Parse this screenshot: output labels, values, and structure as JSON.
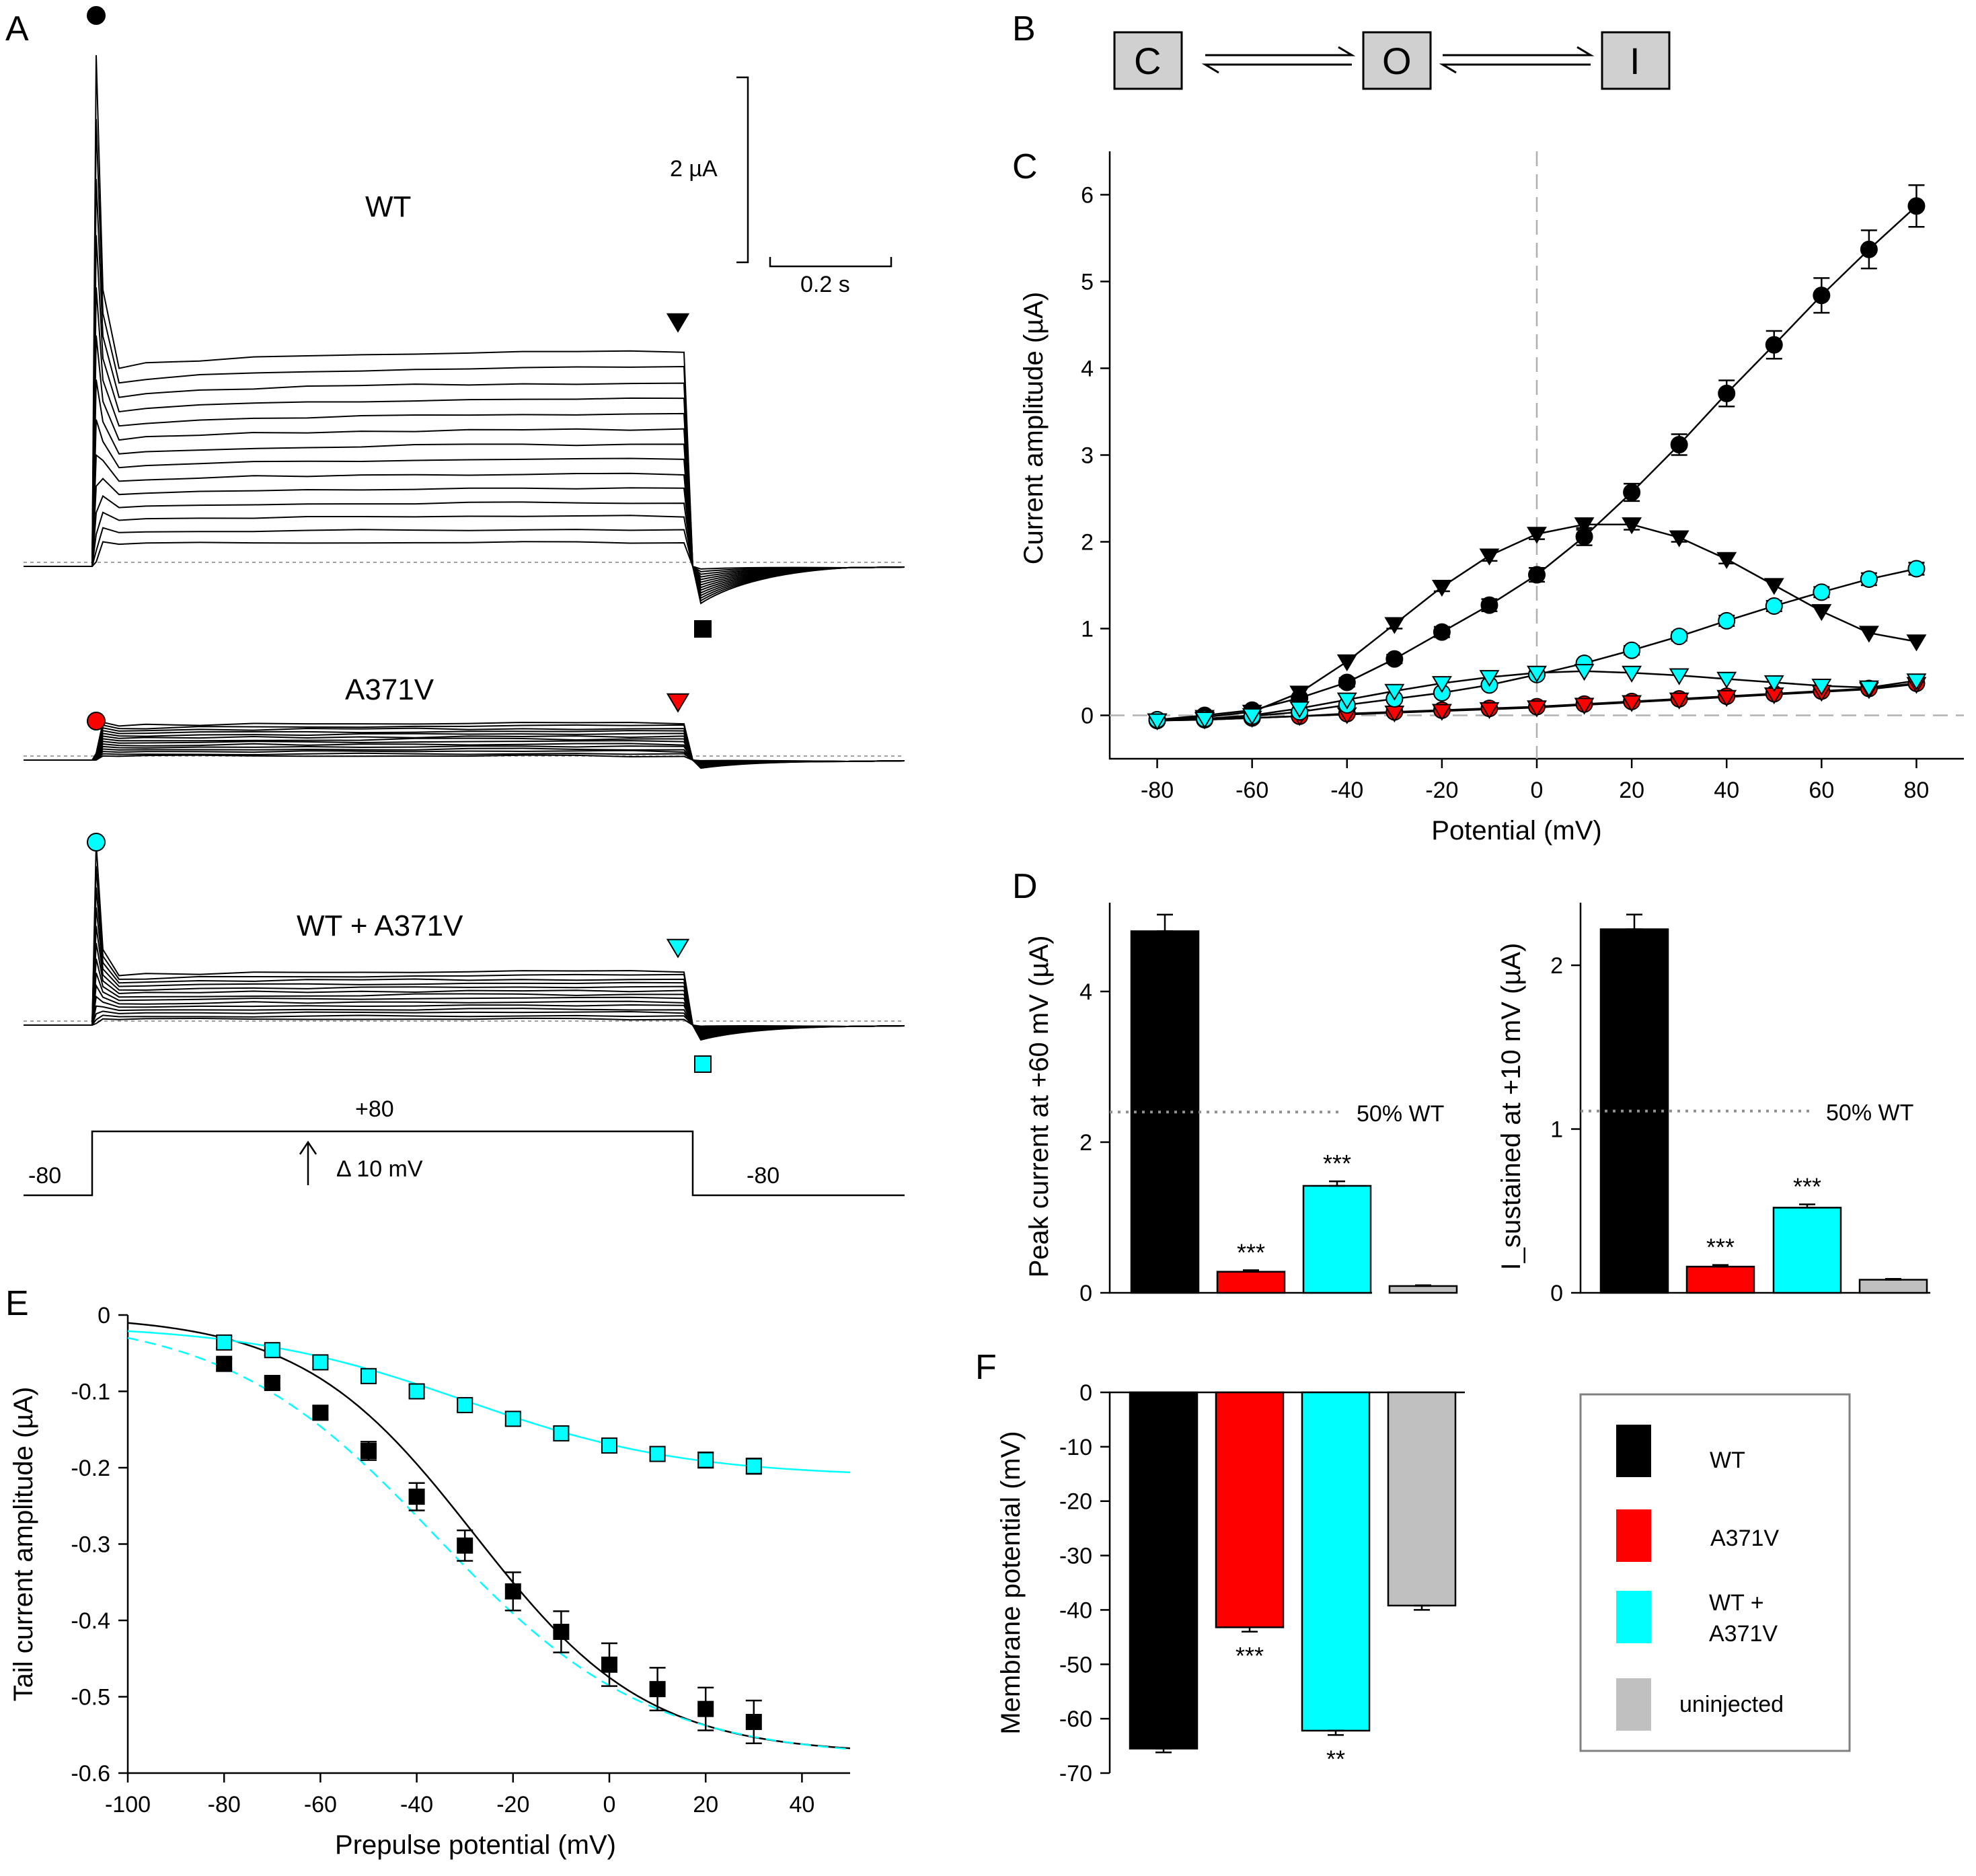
{
  "panels": {
    "A": "A",
    "B": "B",
    "C": "C",
    "D": "D",
    "E": "E",
    "F": "F"
  },
  "colors": {
    "WT": "#000000",
    "A371V": "#ff0000",
    "WT_A371V": "#00ffff",
    "uninjected": "#c0c0c0"
  },
  "panel_A": {
    "trace_labels": [
      "WT",
      "A371V",
      "WT + A371V"
    ],
    "scale_current": "2 µA",
    "scale_time": "0.2 s",
    "protocol": {
      "top": "+80",
      "step": "Δ 10 mV",
      "hold_left": "-80",
      "hold_right": "-80"
    }
  },
  "panel_B": {
    "states": [
      "C",
      "O",
      "I"
    ]
  },
  "chart_data": [
    {
      "panel": "C",
      "type": "line",
      "xlabel": "Potential (mV)",
      "ylabel": "Current amplitude (µA)",
      "xlim": [
        -90,
        90
      ],
      "ylim": [
        -0.5,
        6.5
      ],
      "xticks": [
        "-80",
        "-60",
        "-40",
        "-20",
        "0",
        "20",
        "40",
        "60",
        "80"
      ],
      "yticks": [
        "0",
        "1",
        "2",
        "3",
        "4",
        "5",
        "6"
      ],
      "x": [
        -80,
        -70,
        -60,
        -50,
        -40,
        -30,
        -20,
        -10,
        0,
        10,
        20,
        30,
        40,
        50,
        60,
        70,
        80
      ],
      "series": [
        {
          "group": "WT",
          "marker": "circle",
          "values": [
            -0.05,
            0.0,
            0.06,
            0.2,
            0.38,
            0.65,
            0.96,
            1.27,
            1.62,
            2.06,
            2.57,
            3.12,
            3.71,
            4.27,
            4.84,
            5.37,
            5.87
          ],
          "err": [
            0.03,
            0.03,
            0.03,
            0.04,
            0.05,
            0.05,
            0.06,
            0.07,
            0.08,
            0.1,
            0.1,
            0.12,
            0.15,
            0.16,
            0.2,
            0.22,
            0.24
          ]
        },
        {
          "group": "WT",
          "marker": "triangle",
          "values": [
            -0.06,
            -0.02,
            0.04,
            0.26,
            0.62,
            1.05,
            1.48,
            1.84,
            2.09,
            2.2,
            2.2,
            2.05,
            1.8,
            1.5,
            1.2,
            0.95,
            0.85
          ],
          "err": [
            0.02,
            0.02,
            0.02,
            0.03,
            0.04,
            0.05,
            0.05,
            0.06,
            0.06,
            0.06,
            0.06,
            0.05,
            0.05,
            0.04,
            0.04,
            0.03,
            0.03
          ]
        },
        {
          "group": "A371V",
          "marker": "circle",
          "values": [
            -0.06,
            -0.05,
            -0.03,
            -0.01,
            0.02,
            0.04,
            0.06,
            0.08,
            0.1,
            0.13,
            0.16,
            0.19,
            0.22,
            0.25,
            0.28,
            0.31,
            0.37
          ],
          "err": [
            0.01,
            0.01,
            0.01,
            0.01,
            0.01,
            0.01,
            0.01,
            0.01,
            0.01,
            0.01,
            0.01,
            0.01,
            0.01,
            0.01,
            0.01,
            0.01,
            0.02
          ]
        },
        {
          "group": "A371V",
          "marker": "triangle",
          "values": [
            -0.06,
            -0.05,
            -0.03,
            -0.01,
            0.01,
            0.03,
            0.05,
            0.07,
            0.09,
            0.12,
            0.15,
            0.18,
            0.21,
            0.24,
            0.27,
            0.3,
            0.36
          ],
          "err": [
            0.01,
            0.01,
            0.01,
            0.01,
            0.01,
            0.01,
            0.01,
            0.01,
            0.01,
            0.01,
            0.01,
            0.01,
            0.01,
            0.01,
            0.01,
            0.01,
            0.02
          ]
        },
        {
          "group": "WT_A371V",
          "marker": "circle",
          "values": [
            -0.05,
            -0.04,
            -0.01,
            0.04,
            0.12,
            0.19,
            0.26,
            0.35,
            0.47,
            0.6,
            0.75,
            0.91,
            1.09,
            1.26,
            1.42,
            1.57,
            1.69
          ],
          "err": [
            0.01,
            0.01,
            0.01,
            0.02,
            0.02,
            0.02,
            0.03,
            0.03,
            0.04,
            0.04,
            0.05,
            0.05,
            0.06,
            0.06,
            0.06,
            0.07,
            0.07
          ]
        },
        {
          "group": "WT_A371V",
          "marker": "triangle",
          "values": [
            -0.06,
            -0.04,
            0.0,
            0.08,
            0.18,
            0.28,
            0.37,
            0.44,
            0.49,
            0.51,
            0.49,
            0.46,
            0.42,
            0.38,
            0.34,
            0.32,
            0.4
          ],
          "err": [
            0.01,
            0.01,
            0.01,
            0.02,
            0.02,
            0.02,
            0.03,
            0.03,
            0.03,
            0.03,
            0.03,
            0.03,
            0.03,
            0.02,
            0.02,
            0.02,
            0.02
          ]
        }
      ]
    },
    {
      "panel": "D-left",
      "type": "bar",
      "ylabel": "Peak current at +60 mV (µA)",
      "ylim": [
        0,
        5
      ],
      "yticks": [
        "0",
        "2",
        "4"
      ],
      "groups": [
        "WT",
        "A371V",
        "WT_A371V",
        "uninjected"
      ],
      "values": [
        4.8,
        0.28,
        1.42,
        0.09
      ],
      "err": [
        0.22,
        0.02,
        0.06,
        0.01
      ],
      "stars": [
        "",
        "***",
        "***",
        ""
      ],
      "reference": {
        "value": 2.4,
        "label": "50% WT"
      }
    },
    {
      "panel": "D-right",
      "type": "bar",
      "ylabel": "I_sustained at +10 mV (µA)",
      "ylim": [
        0,
        2.3
      ],
      "yticks": [
        "0",
        "1",
        "2"
      ],
      "groups": [
        "WT",
        "A371V",
        "WT_A371V",
        "uninjected"
      ],
      "values": [
        2.22,
        0.16,
        0.52,
        0.08
      ],
      "err": [
        0.09,
        0.01,
        0.02,
        0.005
      ],
      "stars": [
        "",
        "***",
        "***",
        ""
      ],
      "reference": {
        "value": 1.11,
        "label": "50% WT"
      }
    },
    {
      "panel": "E",
      "type": "scatter",
      "xlabel": "Prepulse potential (mV)",
      "ylabel": "Tail current amplitude (µA)",
      "xlim": [
        -100,
        50
      ],
      "ylim": [
        -0.6,
        0
      ],
      "xticks": [
        "-100",
        "-80",
        "-60",
        "-40",
        "-20",
        "0",
        "20",
        "40"
      ],
      "yticks": [
        "0",
        "-0.1",
        "-0.2",
        "-0.3",
        "-0.4",
        "-0.5",
        "-0.6"
      ],
      "x": [
        -80,
        -70,
        -60,
        -50,
        -40,
        -30,
        -20,
        -10,
        0,
        10,
        20,
        30
      ],
      "series": [
        {
          "group": "WT",
          "values": [
            -0.064,
            -0.089,
            -0.128,
            -0.178,
            -0.238,
            -0.302,
            -0.362,
            -0.415,
            -0.458,
            -0.49,
            -0.516,
            -0.533
          ],
          "err": [
            0.007,
            0.007,
            0.009,
            0.012,
            0.018,
            0.02,
            0.025,
            0.027,
            0.028,
            0.028,
            0.028,
            0.028
          ]
        },
        {
          "group": "WT_A371V",
          "values": [
            -0.036,
            -0.046,
            -0.062,
            -0.08,
            -0.1,
            -0.118,
            -0.136,
            -0.155,
            -0.171,
            -0.182,
            -0.19,
            -0.198
          ],
          "err": [
            0.008,
            0.007,
            0.007,
            0.007,
            0.008,
            0.008,
            0.008,
            0.009,
            0.009,
            0.009,
            0.01,
            0.01
          ]
        }
      ],
      "fits": [
        {
          "group": "WT",
          "style": "solid"
        },
        {
          "group": "WT_A371V",
          "style": "solid"
        },
        {
          "group": "WT_A371V",
          "style": "dashed"
        }
      ]
    },
    {
      "panel": "F",
      "type": "bar",
      "ylabel": "Membrane potential (mV)",
      "ylim": [
        -70,
        0
      ],
      "yticks": [
        "0",
        "-10",
        "-20",
        "-30",
        "-40",
        "-50",
        "-60",
        "-70"
      ],
      "groups": [
        "WT",
        "A371V",
        "WT_A371V",
        "uninjected"
      ],
      "values": [
        -65.5,
        -43.2,
        -62.2,
        -39.2
      ],
      "err": [
        0.7,
        0.8,
        0.8,
        0.8
      ],
      "stars": [
        "",
        "***",
        "**",
        ""
      ]
    }
  ],
  "legend": {
    "items": [
      {
        "group": "WT",
        "label": "WT"
      },
      {
        "group": "A371V",
        "label": "A371V"
      },
      {
        "group": "WT_A371V",
        "label": "WT +",
        "label2": "A371V"
      },
      {
        "group": "uninjected",
        "label": "uninjected"
      }
    ]
  }
}
